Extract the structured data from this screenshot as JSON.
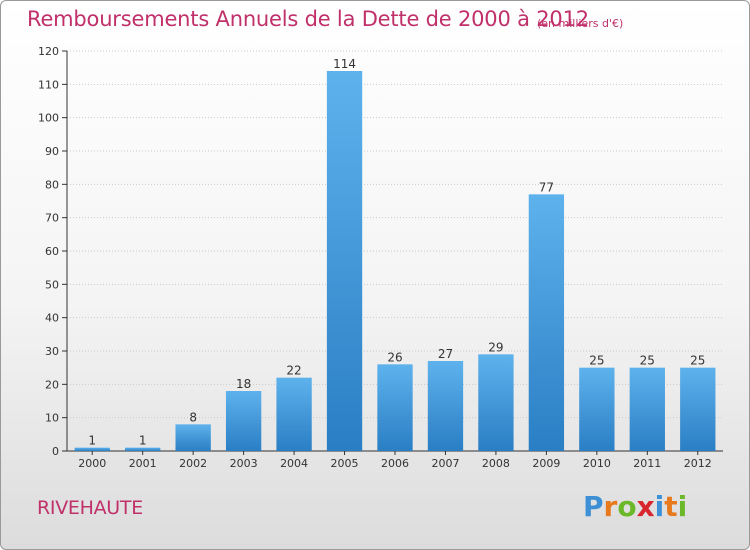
{
  "title": "Remboursements Annuels de la Dette de 2000 à 2012",
  "subtitle": "(en milliers d'€)",
  "location": "RIVEHAUTE",
  "logo": {
    "letters": [
      "P",
      "r",
      "o",
      "x",
      "i",
      "t",
      "i"
    ],
    "colors": [
      "#3d8fd6",
      "#e87a1e",
      "#6bb82a",
      "#d8262e",
      "#3d8fd6",
      "#e87a1e",
      "#6bb82a"
    ]
  },
  "colors": {
    "title": "#c0306a",
    "bar_light": "#5eb2ec",
    "bar_dark": "#2a7ec4",
    "grid": "#c9c9c9",
    "axis": "#333333"
  },
  "chart_data": {
    "type": "bar",
    "categories": [
      "2000",
      "2001",
      "2002",
      "2003",
      "2004",
      "2005",
      "2006",
      "2007",
      "2008",
      "2009",
      "2010",
      "2011",
      "2012"
    ],
    "values": [
      1,
      1,
      8,
      18,
      22,
      114,
      26,
      27,
      29,
      77,
      25,
      25,
      25
    ],
    "data_labels": [
      "1",
      "1",
      "8",
      "18",
      "22",
      "114",
      "26",
      "27",
      "29",
      "77",
      "25",
      "25",
      "25"
    ],
    "yticks": [
      "0",
      "10",
      "20",
      "30",
      "40",
      "50",
      "60",
      "70",
      "80",
      "90",
      "100",
      "110",
      "120"
    ],
    "ylim": [
      0,
      120
    ],
    "grid": true
  }
}
